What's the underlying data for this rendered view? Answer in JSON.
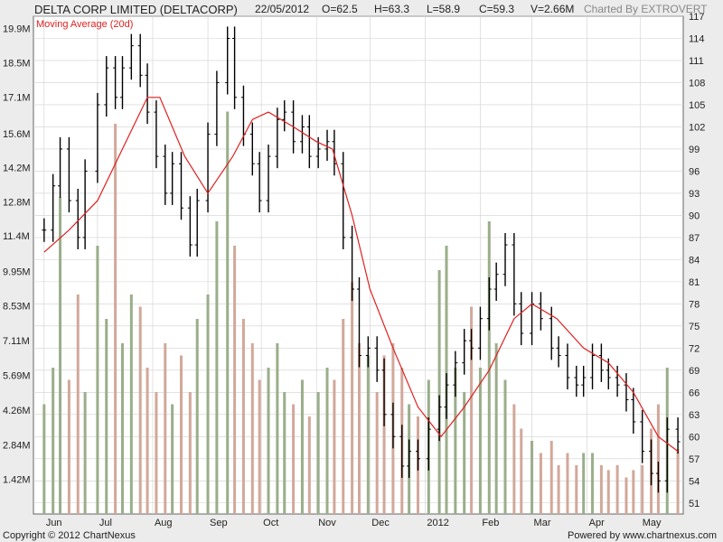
{
  "header": {
    "title": "DELTA CORP LIMITED (DELTACORP)",
    "date": "22/05/2012",
    "open": "O=62.5",
    "high": "H=63.3",
    "low": "L=58.9",
    "close": "C=59.3",
    "volume": "V=2.66M",
    "credit": "Charted By EXTROVERT"
  },
  "footer": {
    "copyright": "Copyright © 2012 ChartNexus",
    "powered": "Powered by www.chartnexus.com"
  },
  "colors": {
    "price": "#000000",
    "moving_average": "#e02020",
    "volume_up": "#9aae8a",
    "volume_down": "#d2a89a",
    "grid": "#d0d0d0",
    "background": "#ffffff"
  },
  "chart_data": {
    "type": "candlestick",
    "title": "DELTA CORP LIMITED (DELTACORP)",
    "legend": [
      "Moving Average (20d)"
    ],
    "legend_placement": "top-left",
    "grid": true,
    "price_axis": {
      "position": "right",
      "ticks": [
        "117",
        "114",
        "111",
        "108",
        "105",
        "102",
        "99",
        "96",
        "93",
        "90",
        "87",
        "84",
        "81",
        "78",
        "75",
        "72",
        "69",
        "66",
        "63",
        "60",
        "57",
        "54",
        "51"
      ],
      "range": [
        49.5,
        117
      ]
    },
    "volume_axis": {
      "position": "left",
      "ticks": [
        "19.9M",
        "18.5M",
        "17.1M",
        "15.6M",
        "14.2M",
        "12.8M",
        "11.4M",
        "9.95M",
        "8.53M",
        "7.11M",
        "5.69M",
        "4.26M",
        "2.84M",
        "1.42M"
      ],
      "range": [
        0,
        20.6
      ]
    },
    "x_axis": {
      "ticks": [
        "Jun",
        "Jul",
        "Aug",
        "Sep",
        "Oct",
        "Nov",
        "Dec",
        "2012",
        "Feb",
        "Mar",
        "Apr",
        "May"
      ]
    },
    "price_series": [
      {
        "d": "2011-06-01",
        "close": 88
      },
      {
        "d": "2011-06-06",
        "close": 94
      },
      {
        "d": "2011-06-10",
        "close": 99
      },
      {
        "d": "2011-06-15",
        "close": 92
      },
      {
        "d": "2011-06-20",
        "close": 87
      },
      {
        "d": "2011-06-24",
        "close": 96
      },
      {
        "d": "2011-07-01",
        "close": 105
      },
      {
        "d": "2011-07-06",
        "close": 110
      },
      {
        "d": "2011-07-11",
        "close": 106
      },
      {
        "d": "2011-07-15",
        "close": 110
      },
      {
        "d": "2011-07-20",
        "close": 113
      },
      {
        "d": "2011-07-25",
        "close": 109
      },
      {
        "d": "2011-07-29",
        "close": 104
      },
      {
        "d": "2011-08-03",
        "close": 98
      },
      {
        "d": "2011-08-08",
        "close": 93
      },
      {
        "d": "2011-08-12",
        "close": 97
      },
      {
        "d": "2011-08-17",
        "close": 91
      },
      {
        "d": "2011-08-22",
        "close": 86
      },
      {
        "d": "2011-08-26",
        "close": 92
      },
      {
        "d": "2011-09-01",
        "close": 101
      },
      {
        "d": "2011-09-06",
        "close": 108
      },
      {
        "d": "2011-09-12",
        "close": 114
      },
      {
        "d": "2011-09-16",
        "close": 106
      },
      {
        "d": "2011-09-21",
        "close": 101
      },
      {
        "d": "2011-09-26",
        "close": 97
      },
      {
        "d": "2011-09-30",
        "close": 92
      },
      {
        "d": "2011-10-05",
        "close": 98
      },
      {
        "d": "2011-10-10",
        "close": 103
      },
      {
        "d": "2011-10-14",
        "close": 104
      },
      {
        "d": "2011-10-19",
        "close": 100
      },
      {
        "d": "2011-10-24",
        "close": 102
      },
      {
        "d": "2011-10-28",
        "close": 98
      },
      {
        "d": "2011-11-02",
        "close": 99
      },
      {
        "d": "2011-11-07",
        "close": 100
      },
      {
        "d": "2011-11-11",
        "close": 97
      },
      {
        "d": "2011-11-16",
        "close": 87
      },
      {
        "d": "2011-11-21",
        "close": 80
      },
      {
        "d": "2011-11-25",
        "close": 71
      },
      {
        "d": "2011-11-30",
        "close": 72
      },
      {
        "d": "2011-12-05",
        "close": 69
      },
      {
        "d": "2011-12-09",
        "close": 63
      },
      {
        "d": "2011-12-14",
        "close": 60
      },
      {
        "d": "2011-12-19",
        "close": 56
      },
      {
        "d": "2011-12-23",
        "close": 58
      },
      {
        "d": "2011-12-28",
        "close": 57
      },
      {
        "d": "2012-01-03",
        "close": 61
      },
      {
        "d": "2012-01-09",
        "close": 64
      },
      {
        "d": "2012-01-13",
        "close": 67
      },
      {
        "d": "2012-01-18",
        "close": 70
      },
      {
        "d": "2012-01-23",
        "close": 73
      },
      {
        "d": "2012-01-27",
        "close": 72
      },
      {
        "d": "2012-02-01",
        "close": 76
      },
      {
        "d": "2012-02-06",
        "close": 80
      },
      {
        "d": "2012-02-10",
        "close": 82
      },
      {
        "d": "2012-02-15",
        "close": 86
      },
      {
        "d": "2012-02-20",
        "close": 78
      },
      {
        "d": "2012-02-24",
        "close": 74
      },
      {
        "d": "2012-03-01",
        "close": 78
      },
      {
        "d": "2012-03-06",
        "close": 76
      },
      {
        "d": "2012-03-12",
        "close": 72
      },
      {
        "d": "2012-03-16",
        "close": 71
      },
      {
        "d": "2012-03-21",
        "close": 68
      },
      {
        "d": "2012-03-26",
        "close": 67
      },
      {
        "d": "2012-03-30",
        "close": 68
      },
      {
        "d": "2012-04-04",
        "close": 71
      },
      {
        "d": "2012-04-09",
        "close": 69
      },
      {
        "d": "2012-04-13",
        "close": 68
      },
      {
        "d": "2012-04-18",
        "close": 67
      },
      {
        "d": "2012-04-23",
        "close": 65
      },
      {
        "d": "2012-04-27",
        "close": 62
      },
      {
        "d": "2012-05-02",
        "close": 58
      },
      {
        "d": "2012-05-07",
        "close": 55
      },
      {
        "d": "2012-05-11",
        "close": 54
      },
      {
        "d": "2012-05-16",
        "close": 61
      },
      {
        "d": "2012-05-22",
        "close": 59.3
      }
    ],
    "moving_average_20d": [
      {
        "d": "2011-06-01",
        "v": 85
      },
      {
        "d": "2011-06-15",
        "v": 88
      },
      {
        "d": "2011-07-01",
        "v": 92
      },
      {
        "d": "2011-07-15",
        "v": 99
      },
      {
        "d": "2011-07-29",
        "v": 106
      },
      {
        "d": "2011-08-05",
        "v": 106
      },
      {
        "d": "2011-08-19",
        "v": 98
      },
      {
        "d": "2011-09-01",
        "v": 93
      },
      {
        "d": "2011-09-15",
        "v": 98
      },
      {
        "d": "2011-09-26",
        "v": 103
      },
      {
        "d": "2011-10-05",
        "v": 104
      },
      {
        "d": "2011-10-19",
        "v": 102
      },
      {
        "d": "2011-11-01",
        "v": 100
      },
      {
        "d": "2011-11-10",
        "v": 99
      },
      {
        "d": "2011-11-21",
        "v": 90
      },
      {
        "d": "2011-12-01",
        "v": 80
      },
      {
        "d": "2011-12-14",
        "v": 72
      },
      {
        "d": "2011-12-28",
        "v": 64
      },
      {
        "d": "2012-01-10",
        "v": 60
      },
      {
        "d": "2012-01-23",
        "v": 64
      },
      {
        "d": "2012-02-06",
        "v": 69
      },
      {
        "d": "2012-02-20",
        "v": 76
      },
      {
        "d": "2012-03-01",
        "v": 78
      },
      {
        "d": "2012-03-15",
        "v": 76
      },
      {
        "d": "2012-03-30",
        "v": 72
      },
      {
        "d": "2012-04-13",
        "v": 70
      },
      {
        "d": "2012-04-27",
        "v": 66
      },
      {
        "d": "2012-05-11",
        "v": 60
      },
      {
        "d": "2012-05-22",
        "v": 58
      }
    ],
    "volume_series": [
      {
        "d": "2011-06-01",
        "v": 4.5
      },
      {
        "d": "2011-06-06",
        "v": 6.0
      },
      {
        "d": "2011-06-10",
        "v": 13.0
      },
      {
        "d": "2011-06-15",
        "v": 5.5
      },
      {
        "d": "2011-06-20",
        "v": 9.0
      },
      {
        "d": "2011-06-24",
        "v": 5.0
      },
      {
        "d": "2011-07-01",
        "v": 11.0
      },
      {
        "d": "2011-07-06",
        "v": 8.0
      },
      {
        "d": "2011-07-11",
        "v": 16.0
      },
      {
        "d": "2011-07-15",
        "v": 7.0
      },
      {
        "d": "2011-07-20",
        "v": 9.0
      },
      {
        "d": "2011-07-25",
        "v": 8.5
      },
      {
        "d": "2011-07-29",
        "v": 6.0
      },
      {
        "d": "2011-08-03",
        "v": 5.0
      },
      {
        "d": "2011-08-08",
        "v": 7.0
      },
      {
        "d": "2011-08-12",
        "v": 4.5
      },
      {
        "d": "2011-08-17",
        "v": 6.5
      },
      {
        "d": "2011-08-22",
        "v": 5.0
      },
      {
        "d": "2011-08-26",
        "v": 8.0
      },
      {
        "d": "2011-09-01",
        "v": 9.0
      },
      {
        "d": "2011-09-06",
        "v": 12.0
      },
      {
        "d": "2011-09-12",
        "v": 16.5
      },
      {
        "d": "2011-09-16",
        "v": 11.0
      },
      {
        "d": "2011-09-21",
        "v": 8.0
      },
      {
        "d": "2011-09-26",
        "v": 7.0
      },
      {
        "d": "2011-09-30",
        "v": 5.5
      },
      {
        "d": "2011-10-05",
        "v": 6.0
      },
      {
        "d": "2011-10-10",
        "v": 7.0
      },
      {
        "d": "2011-10-14",
        "v": 5.0
      },
      {
        "d": "2011-10-19",
        "v": 4.5
      },
      {
        "d": "2011-10-24",
        "v": 5.5
      },
      {
        "d": "2011-10-28",
        "v": 4.0
      },
      {
        "d": "2011-11-02",
        "v": 5.0
      },
      {
        "d": "2011-11-07",
        "v": 6.0
      },
      {
        "d": "2011-11-11",
        "v": 5.5
      },
      {
        "d": "2011-11-16",
        "v": 8.0
      },
      {
        "d": "2011-11-21",
        "v": 9.5
      },
      {
        "d": "2011-11-25",
        "v": 7.0
      },
      {
        "d": "2011-11-30",
        "v": 6.5
      },
      {
        "d": "2011-12-05",
        "v": 5.0
      },
      {
        "d": "2011-12-09",
        "v": 6.5
      },
      {
        "d": "2011-12-14",
        "v": 7.0
      },
      {
        "d": "2011-12-19",
        "v": 6.0
      },
      {
        "d": "2011-12-23",
        "v": 4.5
      },
      {
        "d": "2011-12-28",
        "v": 4.0
      },
      {
        "d": "2012-01-03",
        "v": 5.5
      },
      {
        "d": "2012-01-09",
        "v": 10.0
      },
      {
        "d": "2012-01-13",
        "v": 11.0
      },
      {
        "d": "2012-01-18",
        "v": 6.0
      },
      {
        "d": "2012-01-23",
        "v": 5.0
      },
      {
        "d": "2012-01-27",
        "v": 8.5
      },
      {
        "d": "2012-02-01",
        "v": 6.0
      },
      {
        "d": "2012-02-06",
        "v": 12.0
      },
      {
        "d": "2012-02-10",
        "v": 7.0
      },
      {
        "d": "2012-02-15",
        "v": 5.5
      },
      {
        "d": "2012-02-20",
        "v": 4.5
      },
      {
        "d": "2012-02-24",
        "v": 3.5
      },
      {
        "d": "2012-03-01",
        "v": 3.0
      },
      {
        "d": "2012-03-06",
        "v": 2.5
      },
      {
        "d": "2012-03-12",
        "v": 3.0
      },
      {
        "d": "2012-03-16",
        "v": 2.0
      },
      {
        "d": "2012-03-21",
        "v": 2.5
      },
      {
        "d": "2012-03-26",
        "v": 2.0
      },
      {
        "d": "2012-03-30",
        "v": 2.5
      },
      {
        "d": "2012-04-04",
        "v": 2.5
      },
      {
        "d": "2012-04-09",
        "v": 2.0
      },
      {
        "d": "2012-04-13",
        "v": 1.8
      },
      {
        "d": "2012-04-18",
        "v": 2.0
      },
      {
        "d": "2012-04-23",
        "v": 1.5
      },
      {
        "d": "2012-04-27",
        "v": 1.8
      },
      {
        "d": "2012-05-02",
        "v": 2.0
      },
      {
        "d": "2012-05-07",
        "v": 3.5
      },
      {
        "d": "2012-05-11",
        "v": 4.5
      },
      {
        "d": "2012-05-16",
        "v": 6.0
      },
      {
        "d": "2012-05-22",
        "v": 2.66
      }
    ]
  }
}
